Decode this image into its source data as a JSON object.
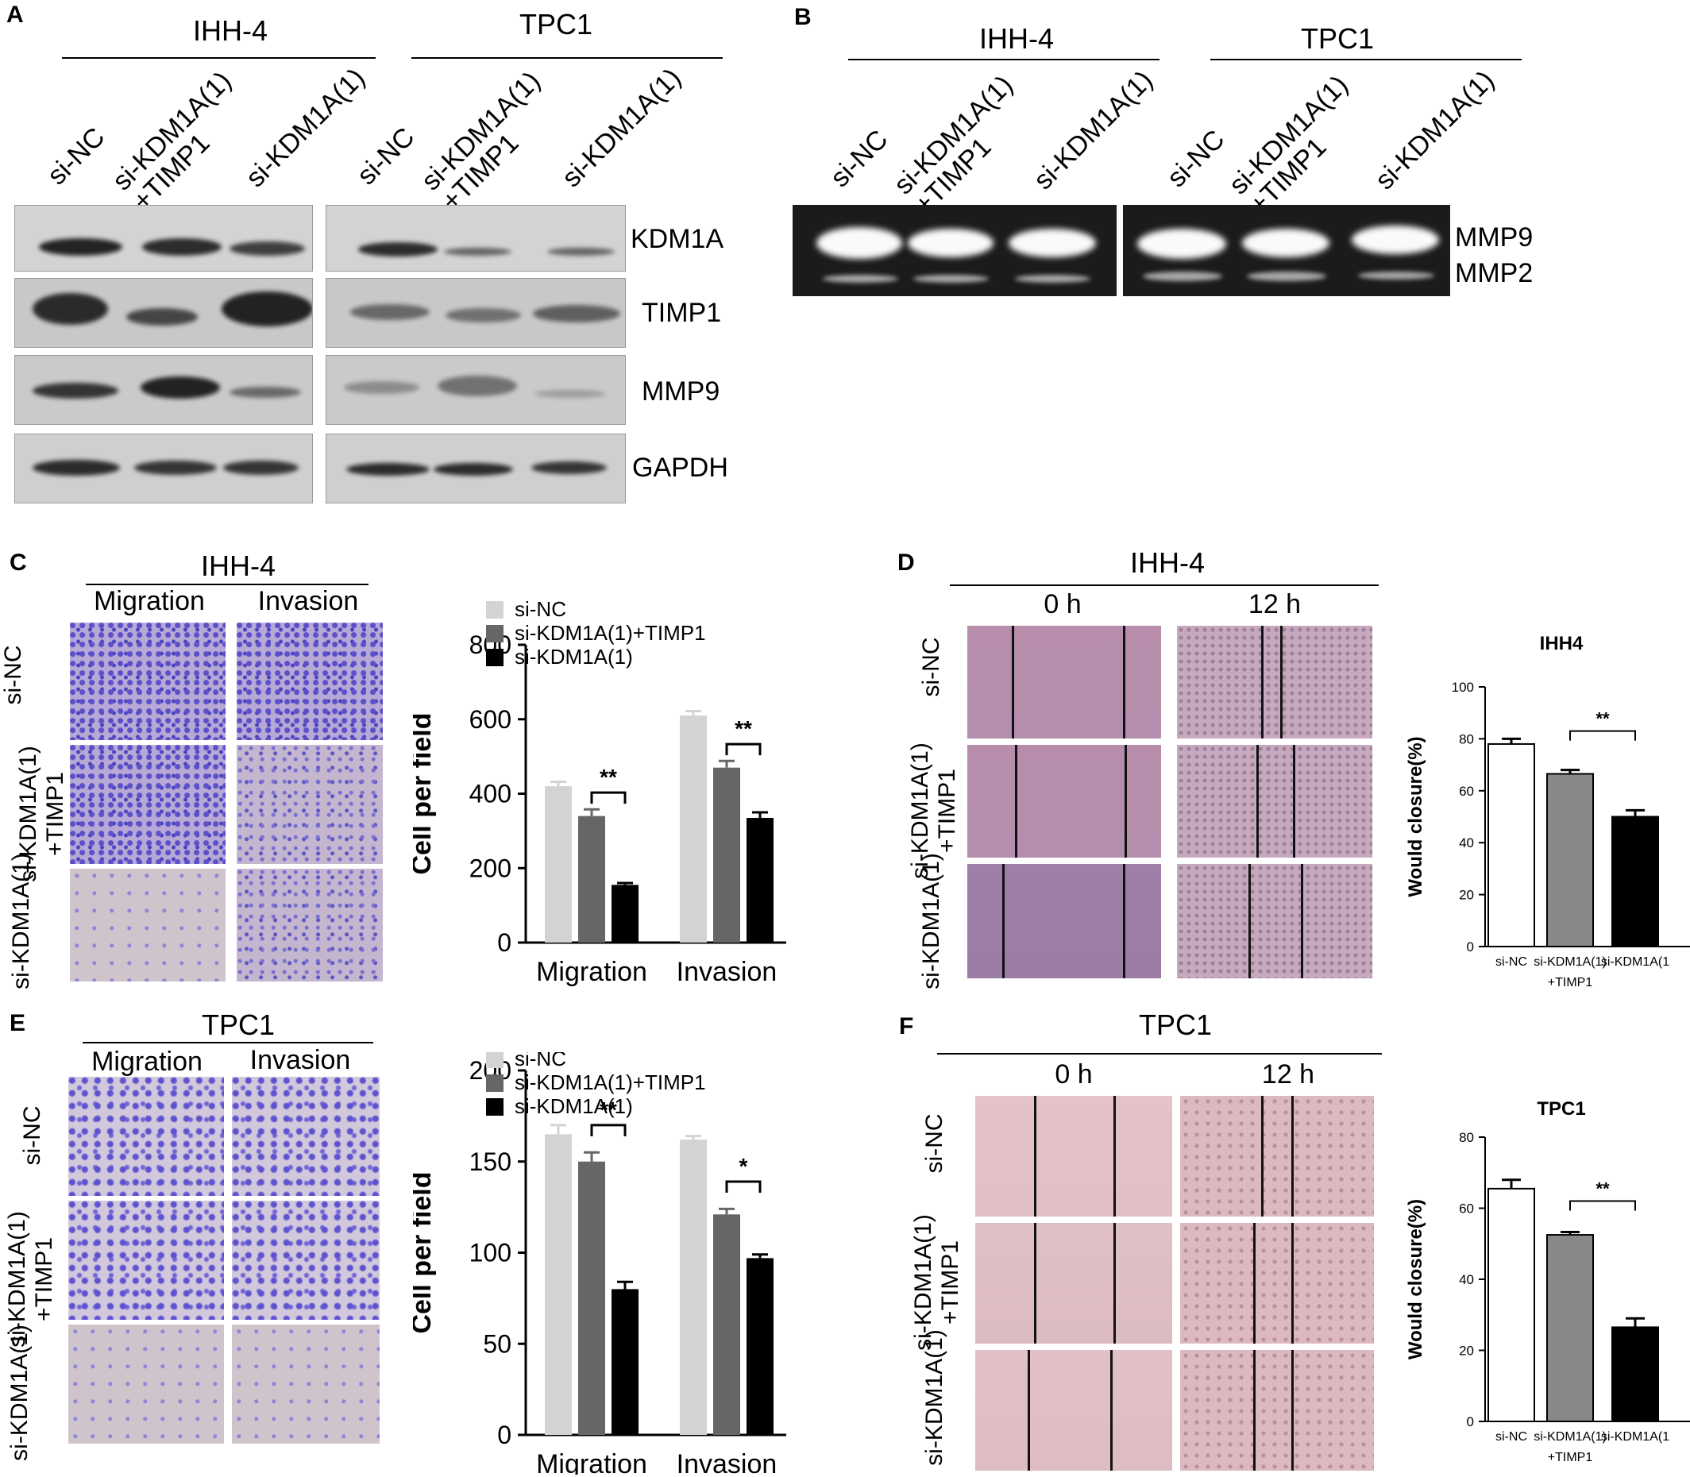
{
  "panels": {
    "A": "A",
    "B": "B",
    "C": "C",
    "D": "D",
    "E": "E",
    "F": "F"
  },
  "panelA": {
    "groups": [
      "IHH-4",
      "TPC1"
    ],
    "lanes": [
      "si-NC",
      "si-KDM1A(1)\n+TIMP1",
      "si-KDM1A(1)"
    ],
    "proteins": [
      "KDM1A",
      "TIMP1",
      "MMP9",
      "GAPDH"
    ]
  },
  "panelB": {
    "groups": [
      "IHH-4",
      "TPC1"
    ],
    "lanes": [
      "si-NC",
      "si-KDM1A(1)\n+TIMP1",
      "si-KDM1A(1)"
    ],
    "bands": [
      "MMP9",
      "MMP2"
    ]
  },
  "panelC": {
    "title": "IHH-4",
    "columns": [
      "Migration",
      "Invasion"
    ],
    "rows": [
      "si-NC",
      "si-KDM1A(1)\n+TIMP1",
      "si-KDM1A(1)"
    ]
  },
  "panelD": {
    "title": "IHH-4",
    "columns": [
      "0 h",
      "12 h"
    ],
    "rows": [
      "si-NC",
      "si-KDM1A(1)\n+TIMP1",
      "si-KDM1A(1)"
    ]
  },
  "panelE": {
    "title": "TPC1",
    "columns": [
      "Migration",
      "Invasion"
    ],
    "rows": [
      "si-NC",
      "si-KDM1A(1)\n+TIMP1",
      "si-KDM1A(1)"
    ]
  },
  "panelF": {
    "title": "TPC1",
    "columns": [
      "0 h",
      "12 h"
    ],
    "rows": [
      "si-NC",
      "si-KDM1A(1)\n+TIMP1",
      "si-KDM1A(1)"
    ]
  },
  "colors": {
    "si-NC": "#d3d3d3",
    "si-KDM1A(1)+TIMP1": "#666666",
    "si-KDM1A(1)": "#000000",
    "closure_nc": "#ffffff",
    "closure_timp": "#888888",
    "closure_kd": "#000000"
  },
  "chart_data": [
    {
      "id": "C",
      "type": "bar",
      "categories": [
        "Migration",
        "Invasion"
      ],
      "series": [
        {
          "name": "si-NC",
          "values": [
            420,
            610
          ],
          "errors": [
            12,
            12
          ]
        },
        {
          "name": "si-KDM1A(1)+TIMP1",
          "values": [
            340,
            470
          ],
          "errors": [
            18,
            18
          ]
        },
        {
          "name": "si-KDM1A(1)",
          "values": [
            155,
            335
          ],
          "errors": [
            5,
            15
          ]
        }
      ],
      "ylabel": "Cell per field",
      "ylim": [
        0,
        800
      ],
      "yticks": [
        0,
        200,
        400,
        600,
        800
      ],
      "significance": [
        {
          "category": "Migration",
          "text": "**"
        },
        {
          "category": "Invasion",
          "text": "**"
        }
      ],
      "legend": "top"
    },
    {
      "id": "D",
      "type": "bar",
      "title": "IHH4",
      "categories": [
        "si-NC",
        "si-KDM1A(1)\n+TIMP1",
        "si-KDM1A(1"
      ],
      "values": [
        78,
        66.5,
        50
      ],
      "errors": [
        2,
        1.5,
        2.5
      ],
      "ylabel": "Would closure(%)",
      "ylim": [
        0,
        100
      ],
      "yticks": [
        0,
        20,
        40,
        60,
        80,
        100
      ],
      "significance": [
        {
          "text": "**"
        }
      ]
    },
    {
      "id": "E",
      "type": "bar",
      "categories": [
        "Migration",
        "Invasion"
      ],
      "series": [
        {
          "name": "si-NC",
          "values": [
            165,
            162
          ],
          "errors": [
            5,
            2
          ]
        },
        {
          "name": "si-KDM1A(1)+TIMP1",
          "values": [
            150,
            121
          ],
          "errors": [
            5,
            3
          ]
        },
        {
          "name": "si-KDM1A(1)",
          "values": [
            80,
            97
          ],
          "errors": [
            4,
            2
          ]
        }
      ],
      "ylabel": "Cell per field",
      "ylim": [
        0,
        200
      ],
      "yticks": [
        0,
        50,
        100,
        150,
        200
      ],
      "significance": [
        {
          "category": "Migration",
          "text": "**"
        },
        {
          "category": "Invasion",
          "text": "*"
        }
      ],
      "legend": "top"
    },
    {
      "id": "F",
      "type": "bar",
      "title": "TPC1",
      "categories": [
        "si-NC",
        "si-KDM1A(1)\n+TIMP1",
        "si-KDM1A(1"
      ],
      "values": [
        65.5,
        52.5,
        26.5
      ],
      "errors": [
        2.5,
        0.8,
        2.5
      ],
      "ylabel": "Would closure(%)",
      "ylim": [
        0,
        80
      ],
      "yticks": [
        0,
        20,
        40,
        60,
        80
      ],
      "significance": [
        {
          "text": "**"
        }
      ]
    }
  ]
}
